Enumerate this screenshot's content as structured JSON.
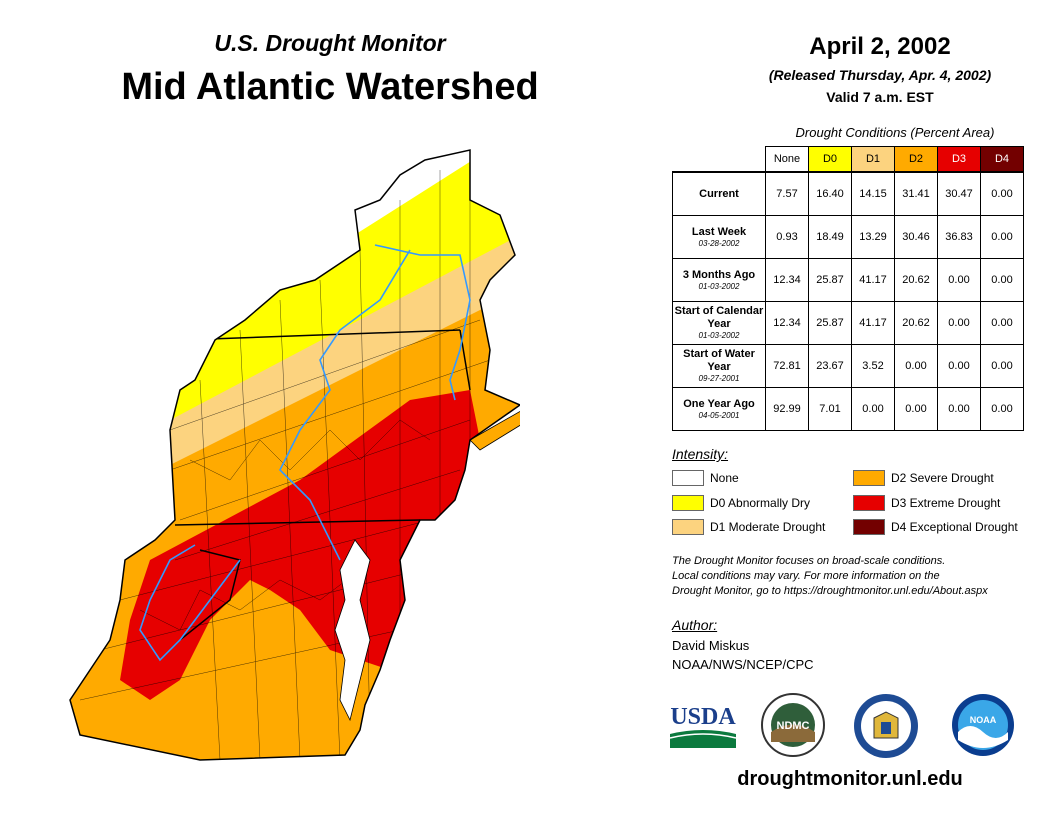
{
  "header": {
    "subtitle": "U.S. Drought Monitor",
    "title": "Mid Atlantic Watershed"
  },
  "date_block": {
    "date": "April 2, 2002",
    "released": "(Released Thursday, Apr. 4, 2002)",
    "valid": "Valid 7 a.m. EST"
  },
  "table": {
    "caption": "Drought Conditions (Percent Area)",
    "columns": [
      {
        "label": "None",
        "color": "#ffffff",
        "text_color": "#000000"
      },
      {
        "label": "D0",
        "color": "#ffff00",
        "text_color": "#000000"
      },
      {
        "label": "D1",
        "color": "#fcd37f",
        "text_color": "#000000"
      },
      {
        "label": "D2",
        "color": "#ffaa00",
        "text_color": "#000000"
      },
      {
        "label": "D3",
        "color": "#e60000",
        "text_color": "#ffffff"
      },
      {
        "label": "D4",
        "color": "#730000",
        "text_color": "#ffffff"
      }
    ],
    "rows": [
      {
        "label": "Current",
        "date": "",
        "values": [
          "7.57",
          "16.40",
          "14.15",
          "31.41",
          "30.47",
          "0.00"
        ]
      },
      {
        "label": "Last Week",
        "date": "03-28-2002",
        "values": [
          "0.93",
          "18.49",
          "13.29",
          "30.46",
          "36.83",
          "0.00"
        ]
      },
      {
        "label": "3 Months Ago",
        "date": "01-03-2002",
        "values": [
          "12.34",
          "25.87",
          "41.17",
          "20.62",
          "0.00",
          "0.00"
        ]
      },
      {
        "label": "Start of Calendar Year",
        "date": "01-03-2002",
        "values": [
          "12.34",
          "25.87",
          "41.17",
          "20.62",
          "0.00",
          "0.00"
        ]
      },
      {
        "label": "Start of Water Year",
        "date": "09-27-2001",
        "values": [
          "72.81",
          "23.67",
          "3.52",
          "0.00",
          "0.00",
          "0.00"
        ]
      },
      {
        "label": "One Year Ago",
        "date": "04-05-2001",
        "values": [
          "92.99",
          "7.01",
          "0.00",
          "0.00",
          "0.00",
          "0.00"
        ]
      }
    ]
  },
  "legend": {
    "title": "Intensity:",
    "items": [
      {
        "label": "None",
        "color": "#ffffff"
      },
      {
        "label": "D0 Abnormally Dry",
        "color": "#ffff00"
      },
      {
        "label": "D1 Moderate Drought",
        "color": "#fcd37f"
      },
      {
        "label": "D2 Severe Drought",
        "color": "#ffaa00"
      },
      {
        "label": "D3 Extreme Drought",
        "color": "#e60000"
      },
      {
        "label": "D4 Exceptional Drought",
        "color": "#730000"
      }
    ]
  },
  "note": {
    "line1": "The Drought Monitor focuses on broad-scale conditions.",
    "line2": "Local conditions may vary. For more information on the",
    "line3": "Drought Monitor, go to https://droughtmonitor.unl.edu/About.aspx"
  },
  "author": {
    "label": "Author:",
    "name": "David Miskus",
    "org": "NOAA/NWS/NCEP/CPC"
  },
  "logos": {
    "usda": "USDA",
    "ndmc": "NDMC",
    "noaa": "NOAA"
  },
  "website": "droughtmonitor.unl.edu"
}
